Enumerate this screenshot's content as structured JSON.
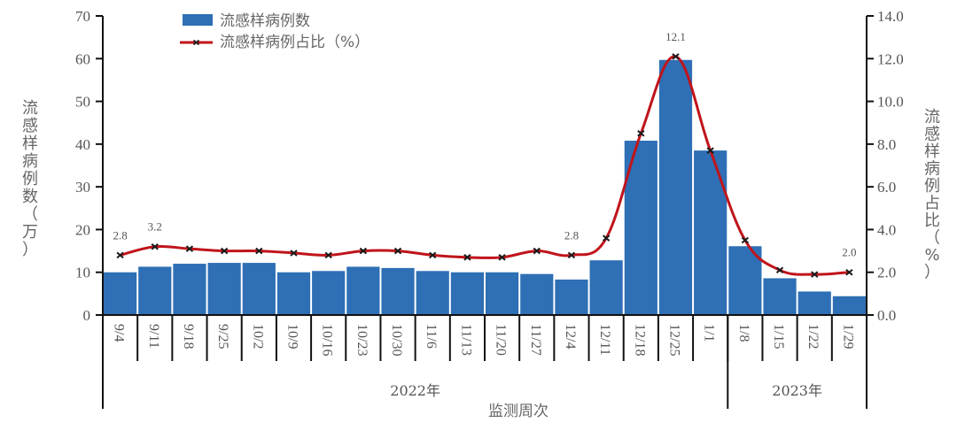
{
  "chart_data": {
    "type": "bar+line",
    "title": "",
    "categories": [
      "9/4",
      "9/11",
      "9/18",
      "9/25",
      "10/2",
      "10/9",
      "10/16",
      "10/23",
      "10/30",
      "11/6",
      "11/13",
      "11/20",
      "11/27",
      "12/4",
      "12/11",
      "12/18",
      "12/25",
      "1/1",
      "1/8",
      "1/15",
      "1/22",
      "1/29"
    ],
    "year_groups": [
      {
        "label": "2022年",
        "from": 0,
        "to": 17
      },
      {
        "label": "2023年",
        "from": 18,
        "to": 21
      }
    ],
    "series": [
      {
        "name": "流感样病例数",
        "type": "bar",
        "axis": "left",
        "color": "#2e6fb5",
        "values": [
          10.0,
          11.3,
          12.0,
          12.2,
          12.2,
          10.0,
          10.3,
          11.3,
          11.0,
          10.3,
          10.0,
          10.0,
          9.6,
          8.3,
          12.8,
          40.8,
          59.7,
          38.5,
          16.1,
          8.6,
          5.5,
          4.4
        ]
      },
      {
        "name": "流感样病例占比（%）",
        "type": "line",
        "axis": "right",
        "color": "#c0141b",
        "marker": "x",
        "values": [
          2.8,
          3.2,
          3.1,
          3.0,
          3.0,
          2.9,
          2.8,
          3.0,
          3.0,
          2.8,
          2.7,
          2.7,
          3.0,
          2.8,
          3.6,
          8.5,
          12.1,
          7.7,
          3.5,
          2.1,
          1.9,
          2.0
        ]
      }
    ],
    "annotations": [
      {
        "index": 0,
        "text": "2.8"
      },
      {
        "index": 1,
        "text": "3.2"
      },
      {
        "index": 13,
        "text": "2.8"
      },
      {
        "index": 16,
        "text": "12.1"
      },
      {
        "index": 21,
        "text": "2.0"
      }
    ],
    "xlabel": "监测周次",
    "ylabel": "流感样病例数（万）",
    "y2label": "流感样病例占比（%）",
    "ylim": [
      0,
      70
    ],
    "yticks": [
      "0",
      "10",
      "20",
      "30",
      "40",
      "50",
      "60",
      "70"
    ],
    "y2lim": [
      0,
      14
    ],
    "y2ticks": [
      "0.0",
      "2.0",
      "4.0",
      "6.0",
      "8.0",
      "10.0",
      "12.0",
      "14.0"
    ],
    "grid": false,
    "legend_position": "top-left-inside"
  },
  "legend": {
    "bar_label": "流感样病例数",
    "line_label": "流感样病例占比（%）"
  },
  "axes": {
    "left_title_chars": [
      "流",
      "感",
      "样",
      "病",
      "例",
      "数",
      "（",
      "万",
      "）"
    ],
    "right_title_chars": [
      "流",
      "感",
      "样",
      "病",
      "例",
      "占",
      "比",
      "（",
      "%",
      "）"
    ],
    "x_title": "监测周次"
  }
}
